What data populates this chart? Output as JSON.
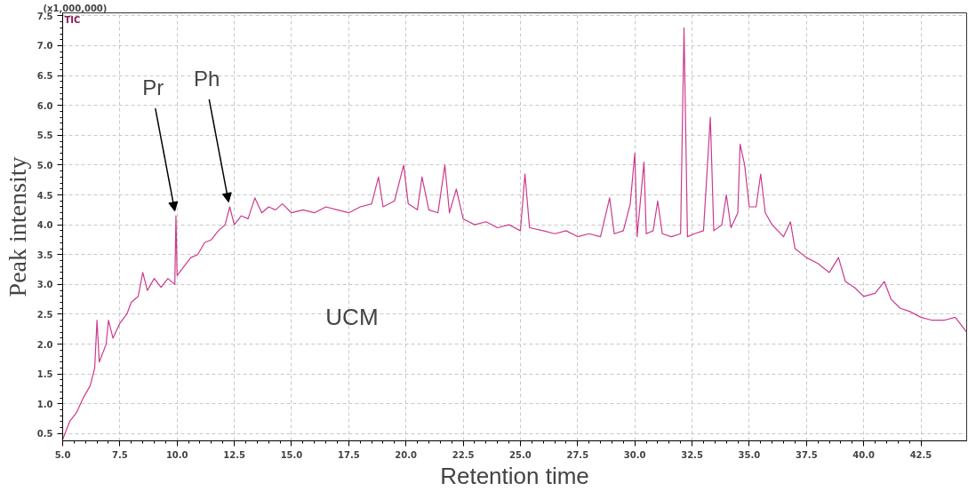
{
  "chart_data": {
    "type": "line",
    "xlabel": "Retention time",
    "ylabel": "Peak intensity",
    "xlim": [
      5.0,
      44.5
    ],
    "ylim": [
      0.38,
      7.55
    ],
    "xticks": [
      {
        "value": 5,
        "label": "5.0"
      },
      7.5,
      {
        "value": 10,
        "label": "10.0"
      },
      12.5,
      {
        "value": 15,
        "label": "15.0"
      },
      17.5,
      {
        "value": 20,
        "label": "20.0"
      },
      22.5,
      {
        "value": 25,
        "label": "25.0"
      },
      27.5,
      {
        "value": 30,
        "label": "30.0"
      },
      32.5,
      {
        "value": 35,
        "label": "35.0"
      },
      37.5,
      {
        "value": 40,
        "label": "40.0"
      },
      42.5
    ],
    "yticks": [
      0.5,
      {
        "value": 1,
        "label": "1.0"
      },
      1.5,
      {
        "value": 2,
        "label": "2.0"
      },
      2.5,
      {
        "value": 3,
        "label": "3.0"
      },
      3.5,
      {
        "value": 4,
        "label": "4.0"
      },
      4.5,
      {
        "value": 5,
        "label": "5.0"
      },
      5.5,
      {
        "value": 6,
        "label": "6.0"
      },
      6.5,
      {
        "value": 7,
        "label": "7.0"
      },
      7.5
    ],
    "grid": true,
    "marker": "none",
    "line_style": "solid",
    "annotations": [
      "(x1,000,000)",
      "TIC",
      {
        "text": "Pr",
        "x": 9.95,
        "y": 4.15
      },
      {
        "text": "Ph",
        "x": 12.3,
        "y": 4.3
      },
      "UCM"
    ],
    "series": [
      {
        "color": "#cc3a8e",
        "x": [
          5.0,
          5.3,
          5.6,
          5.9,
          6.2,
          6.4,
          6.5,
          6.6,
          6.9,
          7.0,
          7.2,
          7.5,
          7.8,
          8.0,
          8.3,
          8.5,
          8.7,
          9.0,
          9.3,
          9.6,
          9.9,
          9.95,
          10.0,
          10.3,
          10.6,
          10.9,
          11.2,
          11.5,
          11.8,
          12.1,
          12.3,
          12.5,
          12.8,
          13.1,
          13.4,
          13.7,
          14.0,
          14.3,
          14.6,
          15.0,
          15.5,
          16.0,
          16.5,
          17.0,
          17.5,
          18.0,
          18.5,
          18.8,
          19.0,
          19.5,
          19.9,
          20.1,
          20.5,
          20.7,
          21.0,
          21.4,
          21.7,
          21.9,
          22.2,
          22.5,
          23.0,
          23.5,
          24.0,
          24.5,
          25.0,
          25.2,
          25.4,
          26.0,
          26.5,
          27.0,
          27.5,
          28.0,
          28.5,
          28.9,
          29.1,
          29.5,
          29.8,
          30.0,
          30.1,
          30.4,
          30.5,
          30.8,
          31.0,
          31.2,
          31.6,
          32.0,
          32.15,
          32.3,
          32.6,
          33.0,
          33.3,
          33.45,
          33.8,
          34.0,
          34.2,
          34.5,
          34.6,
          34.8,
          35.0,
          35.3,
          35.5,
          35.7,
          36.0,
          36.5,
          36.8,
          37.0,
          37.5,
          38.0,
          38.5,
          38.9,
          39.2,
          39.6,
          40.0,
          40.5,
          40.9,
          41.2,
          41.6,
          42.0,
          42.5,
          43.0,
          43.5,
          44.0,
          44.3,
          44.5
        ],
        "values": [
          0.4,
          0.7,
          0.85,
          1.1,
          1.3,
          1.6,
          2.4,
          1.7,
          2.0,
          2.4,
          2.1,
          2.35,
          2.5,
          2.7,
          2.8,
          3.2,
          2.9,
          3.1,
          2.95,
          3.1,
          3.0,
          4.15,
          3.15,
          3.3,
          3.45,
          3.5,
          3.7,
          3.75,
          3.9,
          4.0,
          4.3,
          4.0,
          4.15,
          4.1,
          4.45,
          4.2,
          4.3,
          4.25,
          4.35,
          4.2,
          4.25,
          4.2,
          4.3,
          4.25,
          4.2,
          4.3,
          4.35,
          4.8,
          4.3,
          4.4,
          5.0,
          4.35,
          4.25,
          4.8,
          4.25,
          4.2,
          5.0,
          4.2,
          4.6,
          4.1,
          4.0,
          4.05,
          3.95,
          4.0,
          3.9,
          4.85,
          3.95,
          3.9,
          3.85,
          3.9,
          3.8,
          3.85,
          3.8,
          4.45,
          3.85,
          3.9,
          4.35,
          5.2,
          3.8,
          5.05,
          3.85,
          3.9,
          4.4,
          3.85,
          3.8,
          3.85,
          7.3,
          3.8,
          3.85,
          3.9,
          5.8,
          3.9,
          4.0,
          4.5,
          3.95,
          4.2,
          5.35,
          5.0,
          4.3,
          4.3,
          4.85,
          4.2,
          4.0,
          3.8,
          4.05,
          3.6,
          3.45,
          3.35,
          3.2,
          3.45,
          3.05,
          2.95,
          2.8,
          2.85,
          3.05,
          2.75,
          2.6,
          2.55,
          2.45,
          2.4,
          2.4,
          2.45,
          2.3,
          2.2
        ]
      }
    ]
  }
}
